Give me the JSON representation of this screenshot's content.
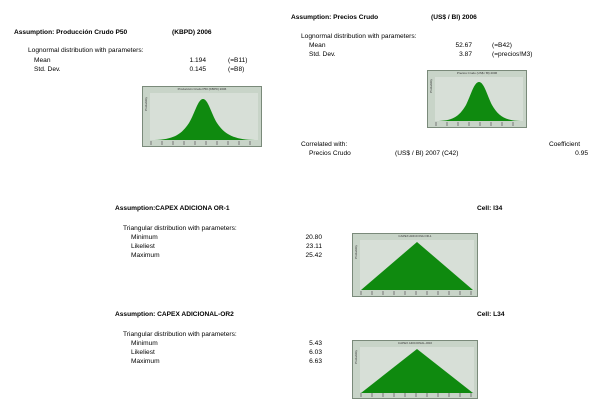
{
  "a1": {
    "title": "Assumption: Producción Crudo P50",
    "unit": "(KBPD) 2006",
    "dist": "Lognormal distribution with parameters:",
    "rows": [
      {
        "label": "Mean",
        "value": "1.194",
        "ref": "(=B11)"
      },
      {
        "label": "Std. Dev.",
        "value": "0.145",
        "ref": "(=B8)"
      }
    ],
    "chart_title": "Producción Crudo P50 (KBPD) 2006",
    "chart_ylabel": "Probability"
  },
  "a2": {
    "title": "Assumption: Precios Crudo",
    "unit": "(US$ / Bl) 2006",
    "dist": "Lognormal distribution with parameters:",
    "rows": [
      {
        "label": "Mean",
        "value": "52.67",
        "ref": "(=B42)"
      },
      {
        "label": "Std. Dev.",
        "value": "3.87",
        "ref": "(=precios!M3)"
      }
    ],
    "chart_title": "Precios Crudo (US$ / Bl) 2006",
    "chart_ylabel": "Probability",
    "correlated_label": "Correlated with:",
    "coefficient_label": "Coefficient",
    "correlated_name": "Precios Crudo",
    "correlated_unit": "(US$ / Bl) 2007 (C42)",
    "coefficient_value": "0.95"
  },
  "a3": {
    "title": "Assumption:CAPEX ADICIONA OR-1",
    "cell": "Cell: I34",
    "dist": "Triangular distribution with parameters:",
    "rows": [
      {
        "label": "Minimum",
        "value": "20.80"
      },
      {
        "label": "Likeliest",
        "value": "23.11"
      },
      {
        "label": "Maximum",
        "value": "25.42"
      }
    ],
    "chart_title": "CAPEX ADICIONA OR-1",
    "chart_ylabel": "Probability"
  },
  "a4": {
    "title": "Assumption: CAPEX ADICIONAL-OR2",
    "cell": "Cell: L34",
    "dist": "Triangular distribution with parameters:",
    "rows": [
      {
        "label": "Minimum",
        "value": "5.43"
      },
      {
        "label": "Likeliest",
        "value": "6.03"
      },
      {
        "label": "Maximum",
        "value": "6.63"
      }
    ],
    "chart_title": "CAPEX ADICIONAL-OR2",
    "chart_ylabel": "Probability"
  },
  "colors": {
    "fill": "#0f8a0f",
    "chart_bg": "#c8d4c8"
  }
}
